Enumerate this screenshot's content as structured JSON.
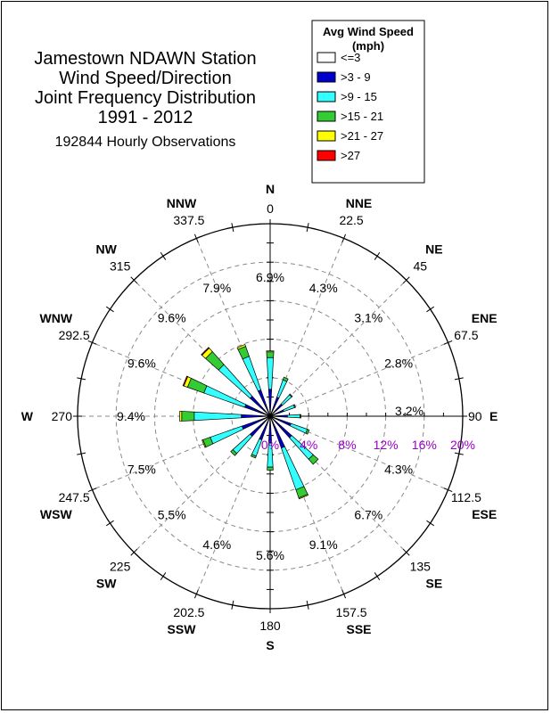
{
  "title_lines": [
    "Jamestown NDAWN Station",
    "Wind Speed/Direction",
    "Joint Frequency Distribution",
    "1991 - 2012"
  ],
  "subtitle": "192844 Hourly Observations",
  "legend": {
    "title_line1": "Avg Wind Speed",
    "title_line2": "(mph)",
    "items": [
      {
        "label": "<=3",
        "color": "#ffffff"
      },
      {
        "label": ">3 - 9",
        "color": "#0000cd"
      },
      {
        "label": ">9 - 15",
        "color": "#33ffff"
      },
      {
        "label": ">15 - 21",
        "color": "#33cc33"
      },
      {
        "label": ">21 - 27",
        "color": "#ffff00"
      },
      {
        "label": ">27",
        "color": "#ff0000"
      }
    ]
  },
  "chart_data": {
    "type": "polar-stacked-bar",
    "radial_axis": {
      "max_percent": 20,
      "ring_labels": [
        "0%",
        "4%",
        "8%",
        "12%",
        "16%",
        "20%"
      ]
    },
    "speed_bins": [
      "<=3",
      ">3 - 9",
      ">9 - 15",
      ">15 - 21",
      ">21 - 27",
      ">27"
    ],
    "directions": [
      {
        "name": "N",
        "deg": "0",
        "angle": 0,
        "total_label": "6.9%",
        "values": [
          0.0,
          2.8,
          3.3,
          0.6,
          0.1,
          0.0
        ]
      },
      {
        "name": "NNE",
        "deg": "22.5",
        "angle": 22.5,
        "total_label": "4.3%",
        "values": [
          0.0,
          2.1,
          1.9,
          0.3,
          0.0,
          0.0
        ]
      },
      {
        "name": "NE",
        "deg": "45",
        "angle": 45,
        "total_label": "3.1%",
        "values": [
          0.0,
          1.7,
          1.3,
          0.1,
          0.0,
          0.0
        ]
      },
      {
        "name": "ENE",
        "deg": "67.5",
        "angle": 67.5,
        "total_label": "2.8%",
        "values": [
          0.0,
          1.5,
          1.2,
          0.1,
          0.0,
          0.0
        ]
      },
      {
        "name": "E",
        "deg": "90",
        "angle": 90,
        "total_label": "3.2%",
        "values": [
          0.0,
          1.8,
          1.3,
          0.1,
          0.0,
          0.0
        ]
      },
      {
        "name": "ESE",
        "deg": "112.5",
        "angle": 112.5,
        "total_label": "4.3%",
        "values": [
          0.0,
          2.3,
          1.8,
          0.2,
          0.0,
          0.0
        ]
      },
      {
        "name": "SE",
        "deg": "135",
        "angle": 135,
        "total_label": "6.7%",
        "values": [
          0.0,
          3.0,
          3.0,
          0.7,
          0.0,
          0.0
        ]
      },
      {
        "name": "SSE",
        "deg": "157.5",
        "angle": 157.5,
        "total_label": "9.1%",
        "values": [
          0.0,
          3.5,
          4.6,
          0.9,
          0.1,
          0.0
        ]
      },
      {
        "name": "S",
        "deg": "180",
        "angle": 180,
        "total_label": "5.6%",
        "values": [
          0.0,
          2.8,
          2.5,
          0.3,
          0.0,
          0.0
        ]
      },
      {
        "name": "SSW",
        "deg": "202.5",
        "angle": 202.5,
        "total_label": "4.6%",
        "values": [
          0.0,
          2.6,
          1.8,
          0.2,
          0.0,
          0.0
        ]
      },
      {
        "name": "SW",
        "deg": "225",
        "angle": 225,
        "total_label": "5.5%",
        "values": [
          0.0,
          2.8,
          2.4,
          0.3,
          0.0,
          0.0
        ]
      },
      {
        "name": "WSW",
        "deg": "247.5",
        "angle": 247.5,
        "total_label": "7.5%",
        "values": [
          0.0,
          3.1,
          3.5,
          0.8,
          0.1,
          0.0
        ]
      },
      {
        "name": "W",
        "deg": "270",
        "angle": 270,
        "total_label": "9.4%",
        "values": [
          0.0,
          3.0,
          4.9,
          1.3,
          0.2,
          0.0
        ]
      },
      {
        "name": "WNW",
        "deg": "292.5",
        "angle": 292.5,
        "total_label": "9.6%",
        "values": [
          0.0,
          2.8,
          4.5,
          1.8,
          0.4,
          0.1
        ]
      },
      {
        "name": "NW",
        "deg": "315",
        "angle": 315,
        "total_label": "9.6%",
        "values": [
          0.0,
          2.8,
          4.4,
          1.8,
          0.5,
          0.1
        ]
      },
      {
        "name": "NNW",
        "deg": "337.5",
        "angle": 337.5,
        "total_label": "7.9%",
        "values": [
          0.0,
          2.9,
          3.7,
          1.1,
          0.2,
          0.0
        ]
      }
    ]
  }
}
